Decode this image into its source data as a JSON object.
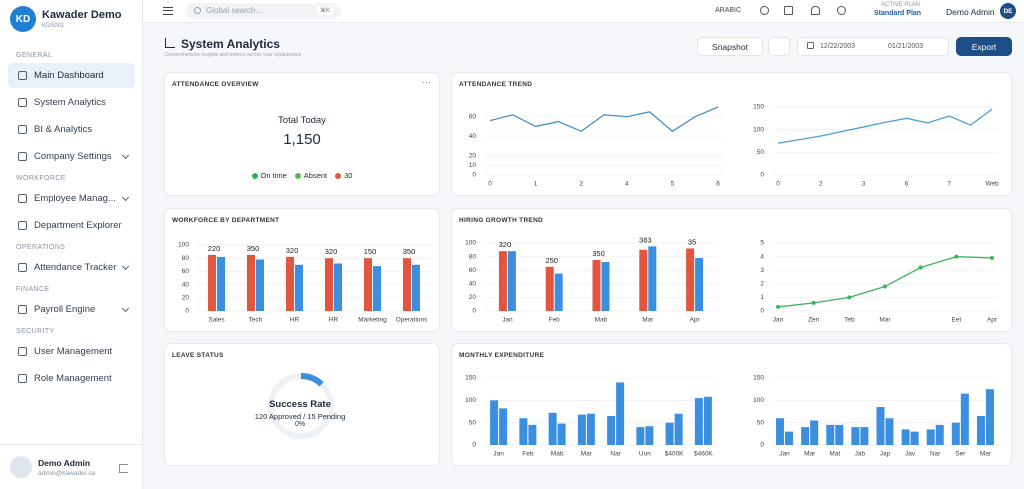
{
  "sidebar": {
    "logo": "KD",
    "brand": "Kawader Demo",
    "code": "KDS001",
    "sections": [
      {
        "title": "GENERAL",
        "items": [
          {
            "label": "Main Dashboard",
            "submenu": false
          },
          {
            "label": "System Analytics",
            "submenu": false
          },
          {
            "label": "BI & Analytics",
            "submenu": false
          },
          {
            "label": "Company Settings",
            "submenu": true
          }
        ]
      },
      {
        "title": "WORKFORCE",
        "items": [
          {
            "label": "Employee Manag...",
            "submenu": true
          },
          {
            "label": "Department Explorer",
            "submenu": false
          }
        ]
      },
      {
        "title": "OPERATIONS",
        "items": [
          {
            "label": "Attendance Tracker",
            "submenu": true
          }
        ]
      },
      {
        "title": "FINANCE",
        "items": [
          {
            "label": "Payroll Engine",
            "submenu": true
          }
        ]
      },
      {
        "title": "SECURITY",
        "items": [
          {
            "label": "User Management",
            "submenu": false
          },
          {
            "label": "Role Management",
            "submenu": false
          }
        ]
      }
    ],
    "user": {
      "name": "Demo Admin",
      "email": "admin@kawader.sa"
    }
  },
  "topbar": {
    "search": "Global search...",
    "shortcut": "⌘K",
    "language": "ARABIC",
    "plan_label": "ACTIVE PLAN",
    "plan": "Standard Plan",
    "user": "Demo Admin",
    "initials": "DE"
  },
  "header": {
    "title": "System Analytics",
    "subtitle": "Comprehensive insights and metrics across your organization",
    "snapshot": "Snapshot",
    "date_from": "12/22/2003",
    "date_to": "01/21/2003",
    "export": "Export"
  },
  "cards": {
    "attendance_overview": {
      "title": "ATTENDANCE OVERVIEW",
      "label": "Total Today",
      "value": "1,150",
      "legend": [
        {
          "label": "On time",
          "color": "#2fb35a"
        },
        {
          "label": "Absent",
          "color": "#58b94a"
        },
        {
          "label": "30",
          "color": "#e2553f"
        }
      ]
    },
    "attendance_trend": {
      "title": "ATTENDANCE TREND",
      "charts": [
        {
          "type": "line",
          "categories": [
            "0",
            null,
            "1",
            null,
            "2",
            null,
            "4",
            null,
            "5",
            null,
            "6"
          ],
          "series": [
            {
              "color": "#4a90c9",
              "values": [
                56,
                62,
                50,
                55,
                45,
                62,
                60,
                65,
                45,
                60,
                70
              ]
            }
          ],
          "ylim": [
            0,
            70
          ],
          "yticks": [
            0,
            10,
            20,
            40,
            60
          ],
          "grid": true,
          "markers": false
        },
        {
          "type": "line",
          "categories": [
            "0",
            null,
            "2",
            null,
            "3",
            null,
            "6",
            null,
            "7",
            null,
            "Web"
          ],
          "series": [
            {
              "color": "#4a9fd8",
              "values": [
                70,
                78,
                86,
                96,
                106,
                116,
                125,
                115,
                130,
                110,
                145
              ]
            }
          ],
          "ylim": [
            0,
            150
          ],
          "yticks": [
            0,
            50,
            100,
            150
          ],
          "grid": true,
          "markers": false
        }
      ]
    },
    "workforce": {
      "title": "WORKFORCE BY DEPARTMENT",
      "chart": {
        "type": "bar",
        "categories": [
          "Sales",
          "Tech",
          "HR",
          "HR",
          "Marketing",
          "Operations"
        ],
        "series": [
          {
            "color": "#e2553f",
            "values": [
              85,
              85,
              82,
              80,
              80,
              80
            ]
          },
          {
            "color": "#3b8fe0",
            "values": [
              82,
              78,
              70,
              72,
              68,
              70
            ]
          }
        ],
        "labels": [
          220,
          350,
          320,
          320,
          150,
          350
        ],
        "ylim": [
          0,
          100
        ],
        "yticks": [
          0,
          20,
          40,
          60,
          80,
          100
        ],
        "grid": true
      }
    },
    "hiring": {
      "title": "HIRING GROWTH TREND",
      "charts": [
        {
          "type": "bar",
          "categories": [
            "Jan",
            "Feb",
            "Mab",
            "Mar",
            "Apr"
          ],
          "series": [
            {
              "color": "#e2553f",
              "values": [
                88,
                65,
                75,
                90,
                92
              ]
            },
            {
              "color": "#3b8fe0",
              "values": [
                88,
                55,
                72,
                95,
                78
              ]
            }
          ],
          "labels": [
            320,
            250,
            350,
            383,
            35
          ],
          "ylim": [
            0,
            100
          ],
          "yticks": [
            0,
            20,
            40,
            60,
            80,
            100
          ],
          "grid": true
        },
        {
          "type": "line",
          "categories": [
            "Jan",
            "Zen",
            "Teb",
            "Mar",
            null,
            "Eet",
            "Apr"
          ],
          "series": [
            {
              "color": "#3cb55a",
              "values": [
                0.3,
                0.6,
                1.0,
                1.8,
                3.2,
                4.0,
                3.9
              ]
            }
          ],
          "ylim": [
            0,
            5
          ],
          "yticks": [
            0,
            1,
            2,
            3,
            4,
            5
          ],
          "grid": true,
          "markers": true
        }
      ]
    },
    "leave": {
      "title": "LEAVE STATUS",
      "label": "Success Rate",
      "detail": "120 Approved / 15 Pending",
      "percent_label": "0%",
      "progress": 12,
      "color": "#3b8fe0"
    },
    "expenditure": {
      "title": "MONTHLY EXPENDITURE",
      "charts": [
        {
          "type": "bar",
          "categories": [
            "Jan",
            "Feb",
            "Mab",
            "Mar",
            "Nar",
            "Uon",
            "$400K",
            "$460K"
          ],
          "series": [
            {
              "color": "#3b8fe0",
              "values": [
                100,
                60,
                72,
                68,
                65,
                40,
                50,
                105
              ]
            },
            {
              "color": "#3b8fe0",
              "values": [
                82,
                45,
                48,
                70,
                140,
                42,
                70,
                108
              ]
            }
          ],
          "ylim": [
            0,
            150
          ],
          "yticks": [
            0,
            50,
            100,
            150
          ],
          "grid": true
        },
        {
          "type": "bar",
          "categories": [
            "Jan",
            "Mar",
            "Mat",
            "Jab",
            "Jap",
            "Jav",
            "Nar",
            "Ser",
            "Mar"
          ],
          "series": [
            {
              "color": "#3b8fe0",
              "values": [
                60,
                40,
                45,
                40,
                85,
                35,
                35,
                50,
                65
              ]
            },
            {
              "color": "#3b8fe0",
              "values": [
                30,
                55,
                45,
                40,
                60,
                30,
                45,
                115,
                125
              ]
            }
          ],
          "ylim": [
            0,
            150
          ],
          "yticks": [
            0,
            50,
            100,
            150
          ],
          "grid": true
        }
      ]
    }
  }
}
